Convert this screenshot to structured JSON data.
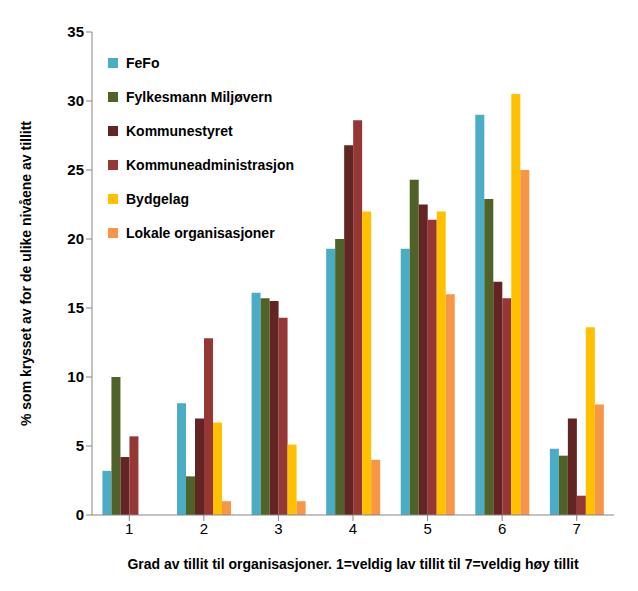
{
  "chart_data": {
    "type": "bar",
    "x_label": "Grad av tillit til organisasjoner. 1=veldig lav tillit til 7=veldig høy tillit",
    "y_label": "% som krysset av for de ulike nivåene av tillitt",
    "categories": [
      "1",
      "2",
      "3",
      "4",
      "5",
      "6",
      "7"
    ],
    "series": [
      {
        "name": "FeFo",
        "color": "#4bacc6",
        "values": [
          3.2,
          8.1,
          16.1,
          19.3,
          19.3,
          29.0,
          4.8
        ]
      },
      {
        "name": "Fylkesmann Miljøvern",
        "color": "#4f6228",
        "values": [
          10.0,
          2.8,
          15.7,
          20.0,
          24.3,
          22.9,
          4.3
        ]
      },
      {
        "name": "Kommunestyret",
        "color": "#632523",
        "values": [
          4.2,
          7.0,
          15.5,
          26.8,
          22.5,
          16.9,
          7.0
        ]
      },
      {
        "name": "Kommuneadministrasjon",
        "color": "#953735",
        "values": [
          5.7,
          12.8,
          14.3,
          28.6,
          21.4,
          15.7,
          1.4
        ]
      },
      {
        "name": "Bydgelag",
        "color": "#ffc000",
        "values": [
          0,
          6.7,
          5.1,
          22.0,
          22.0,
          30.5,
          13.6
        ]
      },
      {
        "name": "Lokale organisasjoner",
        "color": "#f79646",
        "values": [
          0,
          1.0,
          1.0,
          4.0,
          16.0,
          25.0,
          8.0
        ]
      }
    ],
    "ylim": [
      0,
      35
    ],
    "yticks": [
      0,
      5,
      10,
      15,
      20,
      25,
      30,
      35
    ],
    "grid": false,
    "legend": "upper left"
  }
}
